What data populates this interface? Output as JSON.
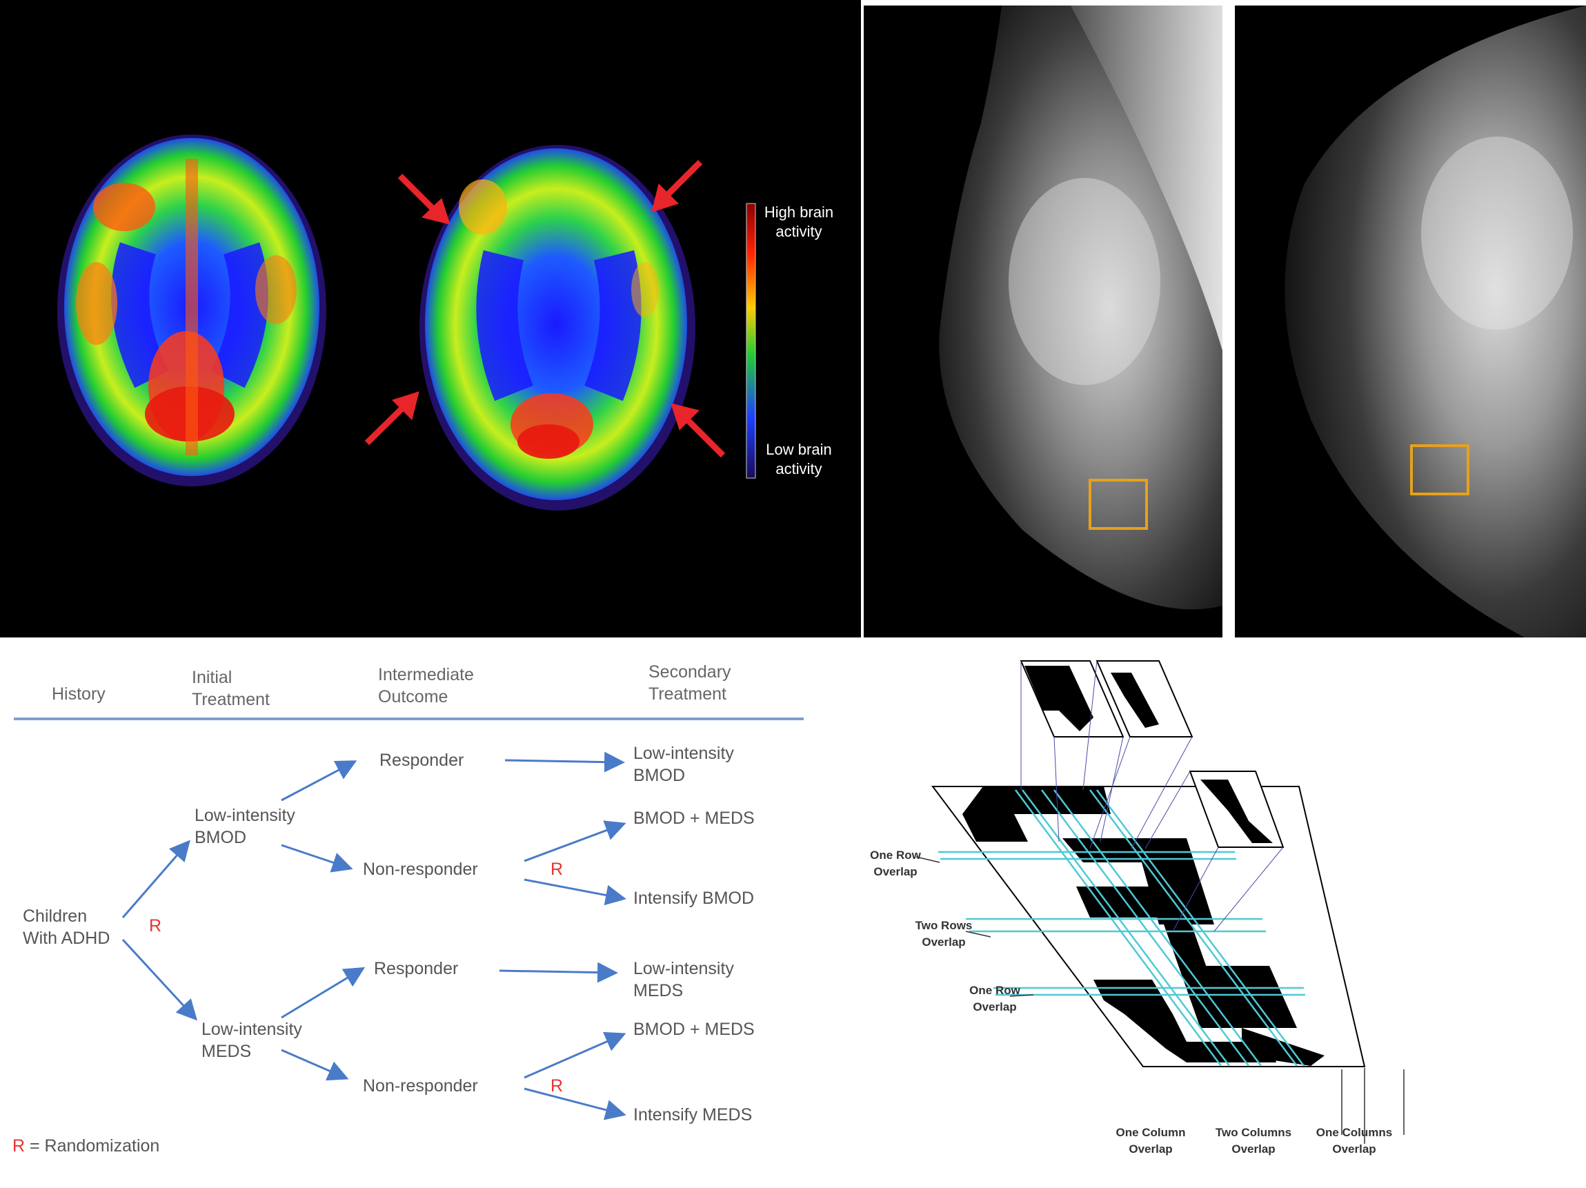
{
  "brain_panel": {
    "colorbar": {
      "high_label": "High brain activity",
      "low_label": "Low brain activity",
      "colors": [
        "#8b0000",
        "#ff2200",
        "#ffcc00",
        "#22cc33",
        "#1e3fff",
        "#1a0a5a"
      ]
    },
    "arrow_color": "#e8252b"
  },
  "mammogram": {
    "roi_box_color": "#e8a11b"
  },
  "flowchart": {
    "headers": {
      "history": "History",
      "initial_treatment_line1": "Initial",
      "initial_treatment_line2": "Treatment",
      "intermediate_outcome_line1": "Intermediate",
      "intermediate_outcome_line2": "Outcome",
      "secondary_treatment_line1": "Secondary",
      "secondary_treatment_line2": "Treatment"
    },
    "root_line1": "Children",
    "root_line2": "With ADHD",
    "randomization_mark": "R",
    "bmod_line1": "Low-intensity",
    "bmod_line2": "BMOD",
    "meds_line1": "Low-intensity",
    "meds_line2": "MEDS",
    "responder": "Responder",
    "non_responder": "Non-responder",
    "outcomes": {
      "bmod_responder_line1": "Low-intensity",
      "bmod_responder_line2": "BMOD",
      "bmod_nr_a": "BMOD + MEDS",
      "bmod_nr_b": "Intensify BMOD",
      "meds_responder_line1": "Low-intensity",
      "meds_responder_line2": "MEDS",
      "meds_nr_a": "BMOD + MEDS",
      "meds_nr_b": "Intensify MEDS"
    },
    "legend_mark": "R",
    "legend_text": " = Randomization",
    "accent_color": "#4a7bc8",
    "r_color": "#e8322f"
  },
  "overlap_diagram": {
    "one_row_overlap_top": "One Row Overlap",
    "two_rows_overlap": "Two Rows Overlap",
    "one_row_overlap_bottom": "One Row Overlap",
    "one_column_overlap_left": "One Column Overlap",
    "two_columns_overlap": "Two Columns Overlap",
    "one_columns_overlap_right": "One Columns Overlap",
    "line_color": "#4fc9d6"
  }
}
